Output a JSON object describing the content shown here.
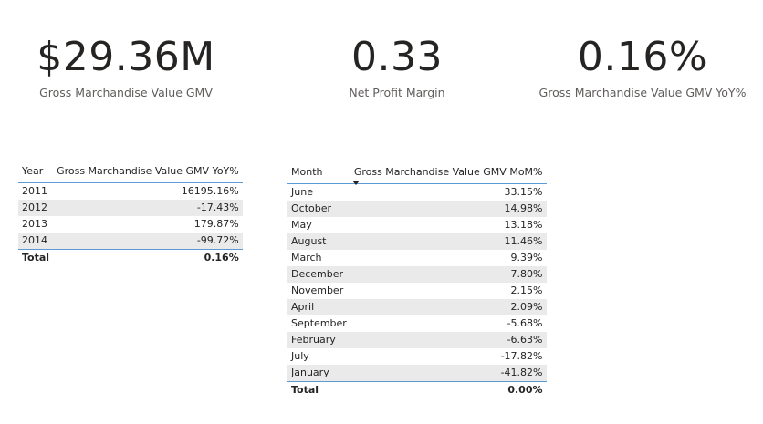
{
  "cards": [
    {
      "value": "$29.36M",
      "label": "Gross Marchandise Value GMV"
    },
    {
      "value": "0.33",
      "label": "Net Profit Margin"
    },
    {
      "value": "0.16%",
      "label": "Gross Marchandise Value GMV YoY%"
    }
  ],
  "year_table": {
    "headers": [
      "Year",
      "Gross Marchandise Value GMV YoY%"
    ],
    "rows": [
      [
        "2011",
        "16195.16%"
      ],
      [
        "2012",
        "-17.43%"
      ],
      [
        "2013",
        "179.87%"
      ],
      [
        "2014",
        "-99.72%"
      ]
    ],
    "total": [
      "Total",
      "0.16%"
    ]
  },
  "month_table": {
    "headers": [
      "Month",
      "Gross Marchandise Value GMV MoM%"
    ],
    "sort_icon": "sort-descending-icon",
    "rows": [
      [
        "June",
        "33.15%"
      ],
      [
        "October",
        "14.98%"
      ],
      [
        "May",
        "13.18%"
      ],
      [
        "August",
        "11.46%"
      ],
      [
        "March",
        "9.39%"
      ],
      [
        "December",
        "7.80%"
      ],
      [
        "November",
        "2.15%"
      ],
      [
        "April",
        "2.09%"
      ],
      [
        "September",
        "-5.68%"
      ],
      [
        "February",
        "-6.63%"
      ],
      [
        "July",
        "-17.82%"
      ],
      [
        "January",
        "-41.82%"
      ]
    ],
    "total": [
      "Total",
      "0.00%"
    ]
  },
  "colors": {
    "accent_line": "#5b9bd5",
    "stripe": "#eaeaea",
    "text": "#252423",
    "label": "#605e5c"
  }
}
